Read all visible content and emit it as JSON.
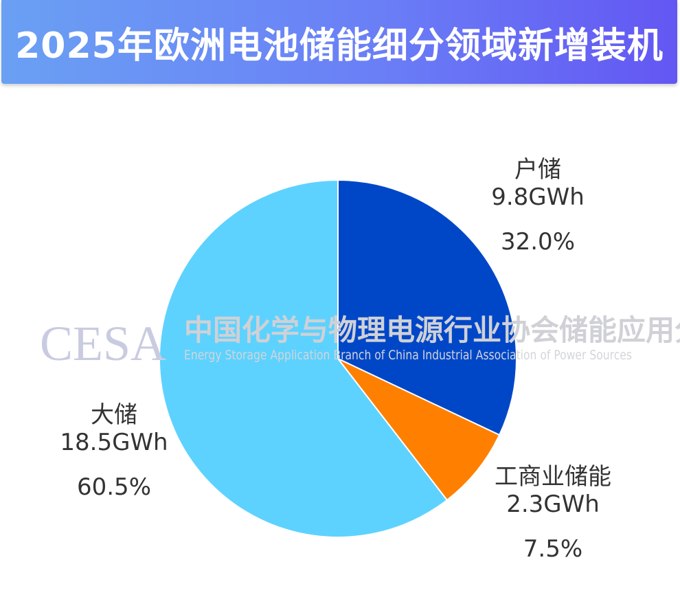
{
  "chart_data": {
    "type": "pie",
    "title": "2025年欧洲电池储能细分领域新增装机",
    "unit": "GWh",
    "slices": [
      {
        "name": "户储",
        "value": 9.8,
        "value_label": "9.8GWh",
        "percent": 32.0,
        "percent_label": "32.0%",
        "color": "#0047c8"
      },
      {
        "name": "工商业储能",
        "value": 2.3,
        "value_label": "2.3GWh",
        "percent": 7.5,
        "percent_label": "7.5%",
        "color": "#ff8000"
      },
      {
        "name": "大储",
        "value": 18.5,
        "value_label": "18.5GWh",
        "percent": 60.5,
        "percent_label": "60.5%",
        "color": "#5dd2ff"
      }
    ]
  },
  "watermark": {
    "logo": "CESA",
    "cn": "中国化学与物理电源行业协会储能应用分会",
    "en": "Energy Storage Application Branch of China Industrial Association of Power Sources"
  }
}
